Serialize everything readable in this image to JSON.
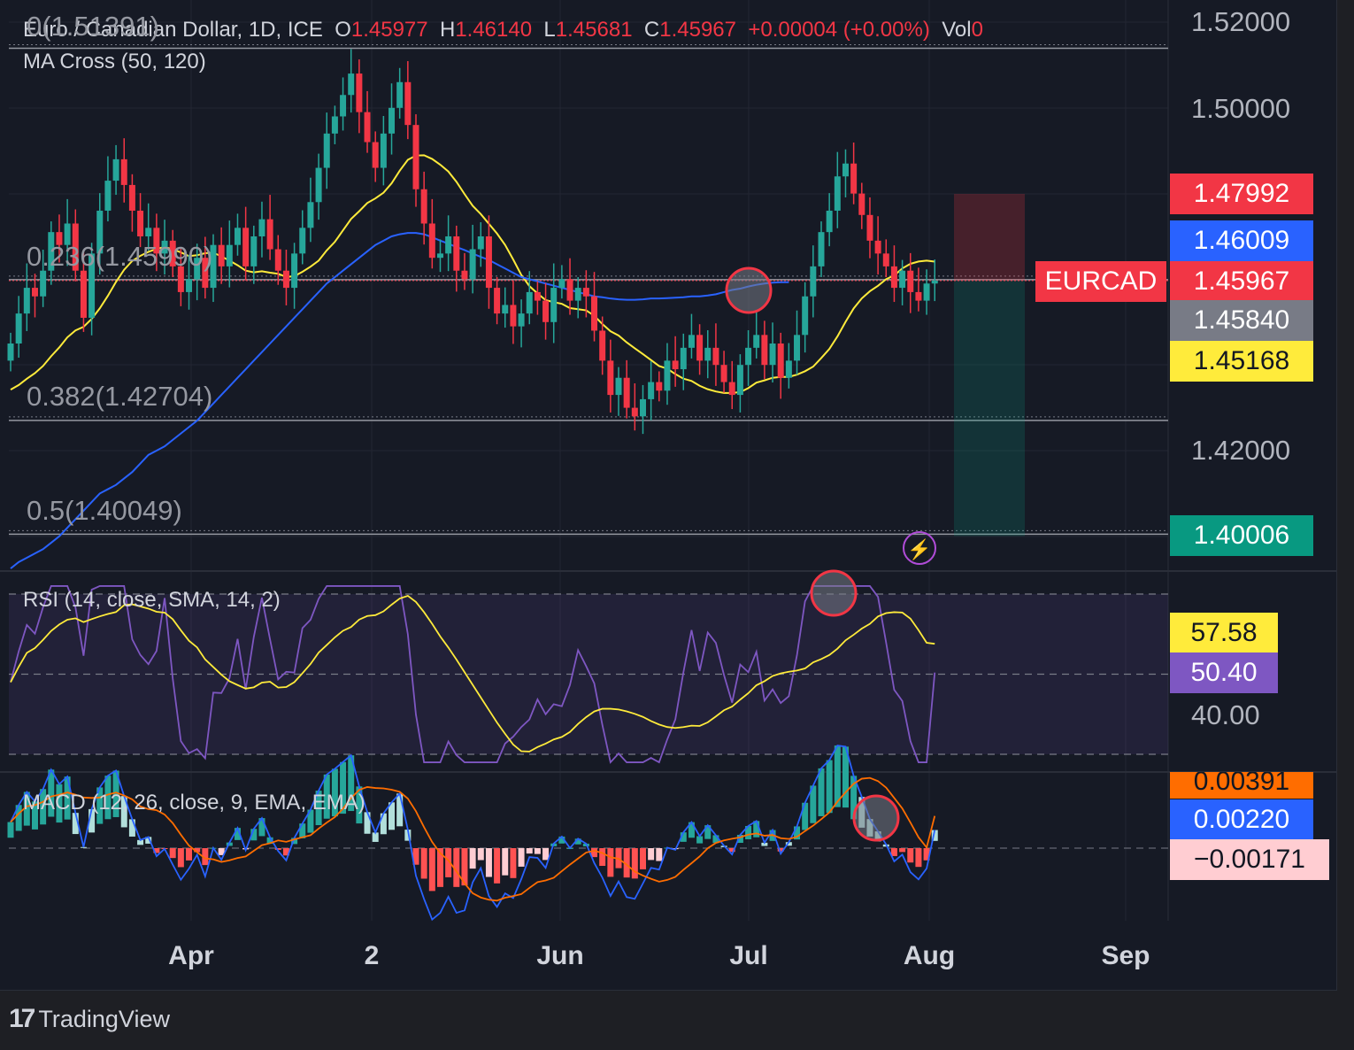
{
  "legend": {
    "symbol": "Euro / Canadian Dollar, 1D, ICE",
    "o_label": "O",
    "o_value": "1.45977",
    "h_label": "H",
    "h_value": "1.46140",
    "l_label": "L",
    "l_value": "1.45681",
    "c_label": "C",
    "c_value": "1.45967",
    "change": "+0.00004 (+0.00%)",
    "vol_label": "Vol",
    "vol_value": "0",
    "indicator_ma": "MA Cross (50, 120)",
    "indicator_rsi": "RSI (14, close, SMA, 14, 2)",
    "indicator_macd": "MACD (12, 26, close, 9, EMA, EMA)"
  },
  "fib_levels": [
    {
      "label": "0(1.51391)",
      "value": 1.51391
    },
    {
      "label": "0.236(1.45990)",
      "value": 1.4599
    },
    {
      "label": "0.382(1.42704)",
      "value": 1.42704
    },
    {
      "label": "0.5(1.40049)",
      "value": 1.40049
    }
  ],
  "price_axis": {
    "ticks": [
      "1.52000",
      "1.50000",
      "1.42000"
    ],
    "tags": [
      {
        "text": "1.47992",
        "value": 1.47992,
        "bg": "#f23645",
        "fg": "#ffffff"
      },
      {
        "text": "1.46009",
        "value": 1.46009,
        "bg": "#2962ff",
        "fg": "#ffffff"
      },
      {
        "text": "1.45967",
        "value": 1.45967,
        "bg": "#f23645",
        "fg": "#ffffff"
      },
      {
        "text": "1.45840",
        "value": 1.4584,
        "bg": "#787b86",
        "fg": "#ffffff"
      },
      {
        "text": "1.45168",
        "value": 1.45168,
        "bg": "#ffeb3b",
        "fg": "#131722"
      },
      {
        "text": "1.40006",
        "value": 1.40006,
        "bg": "#089981",
        "fg": "#ffffff"
      }
    ],
    "symbol_tag": "EURCAD"
  },
  "rsi_axis": {
    "tick": "40.00",
    "tags": [
      {
        "text": "57.58",
        "bg": "#ffeb3b",
        "fg": "#131722"
      },
      {
        "text": "50.40",
        "bg": "#7e57c2",
        "fg": "#ffffff"
      }
    ]
  },
  "macd_axis": {
    "tags": [
      {
        "text": "0.00391",
        "bg": "#ff6d00",
        "fg": "#131722"
      },
      {
        "text": "0.00220",
        "bg": "#2962ff",
        "fg": "#ffffff"
      },
      {
        "text": "−0.00171",
        "bg": "#ffcdd2",
        "fg": "#131722"
      }
    ]
  },
  "time_axis": [
    "Apr",
    "2",
    "Jun",
    "Jul",
    "Aug",
    "Sep"
  ],
  "brand": "TradingView",
  "colors": {
    "up": "#26a69a",
    "down": "#f23645",
    "ma50": "#ffeb3b",
    "ma120": "#2962ff",
    "rsi": "#7e57c2",
    "rsi_ma": "#ffeb3b",
    "macd": "#2962ff",
    "signal": "#ff6d00"
  },
  "chart_data": {
    "type": "candlestick",
    "title": "Euro / Canadian Dollar, 1D, ICE",
    "ylim": [
      1.39,
      1.525
    ],
    "position_tool": {
      "entry": 1.45967,
      "stop": 1.47992,
      "target": 1.40006
    },
    "ohlc_close": [
      1.445,
      1.452,
      1.458,
      1.456,
      1.462,
      1.471,
      1.468,
      1.473,
      1.462,
      1.451,
      1.466,
      1.476,
      1.483,
      1.488,
      1.482,
      1.476,
      1.47,
      1.472,
      1.466,
      1.469,
      1.463,
      1.457,
      1.46,
      1.465,
      1.458,
      1.468,
      1.463,
      1.468,
      1.472,
      1.463,
      1.47,
      1.474,
      1.467,
      1.462,
      1.458,
      1.466,
      1.472,
      1.478,
      1.486,
      1.494,
      1.498,
      1.503,
      1.508,
      1.499,
      1.492,
      1.486,
      1.494,
      1.5,
      1.506,
      1.496,
      1.481,
      1.473,
      1.465,
      1.466,
      1.47,
      1.462,
      1.46,
      1.467,
      1.47,
      1.458,
      1.452,
      1.454,
      1.449,
      1.452,
      1.457,
      1.455,
      1.45,
      1.458,
      1.46,
      1.455,
      1.458,
      1.456,
      1.448,
      1.441,
      1.433,
      1.437,
      1.43,
      1.428,
      1.432,
      1.436,
      1.434,
      1.441,
      1.439,
      1.444,
      1.447,
      1.441,
      1.444,
      1.44,
      1.436,
      1.433,
      1.44,
      1.444,
      1.447,
      1.44,
      1.445,
      1.437,
      1.441,
      1.447,
      1.456,
      1.463,
      1.471,
      1.476,
      1.484,
      1.487,
      1.48,
      1.475,
      1.469,
      1.466,
      1.463,
      1.458,
      1.462,
      1.457,
      1.455,
      1.459,
      1.4597
    ],
    "ma50": [
      1.3925,
      1.394,
      1.395,
      1.396,
      1.397,
      1.3985,
      1.4,
      1.402,
      1.404,
      1.406,
      1.408,
      1.41,
      1.411,
      1.412,
      1.4135,
      1.415,
      1.417,
      1.419,
      1.42,
      1.421,
      1.4225,
      1.424,
      1.4255,
      1.427,
      1.429,
      1.431,
      1.433,
      1.435,
      1.437,
      1.439,
      1.441,
      1.443,
      1.445,
      1.447,
      1.449,
      1.451,
      1.453,
      1.455,
      1.457,
      1.459,
      1.4605,
      1.462,
      1.4635,
      1.465,
      1.4665,
      1.468,
      1.469,
      1.47,
      1.4705,
      1.4708,
      1.4708,
      1.4705,
      1.4698,
      1.469,
      1.4683,
      1.4675,
      1.4668,
      1.466,
      1.4652,
      1.4645,
      1.4635,
      1.4625,
      1.4615,
      1.4605,
      1.46,
      1.4595,
      1.459,
      1.4585,
      1.458,
      1.4575,
      1.457,
      1.4565,
      1.456,
      1.4558,
      1.4555,
      1.4553,
      1.4552,
      1.4552,
      1.4553,
      1.4555,
      1.4555,
      1.4556,
      1.4557,
      1.4558,
      1.456,
      1.456,
      1.4562,
      1.4565,
      1.457,
      1.4575,
      1.4578,
      1.4583,
      1.4587,
      1.459,
      1.4592,
      1.4593,
      1.4593
    ],
    "rsi_last": 50.4,
    "rsi_ma_last": 57.58,
    "macd_last": 0.0022,
    "signal_last": 0.00391,
    "hist_last": -0.00171
  }
}
